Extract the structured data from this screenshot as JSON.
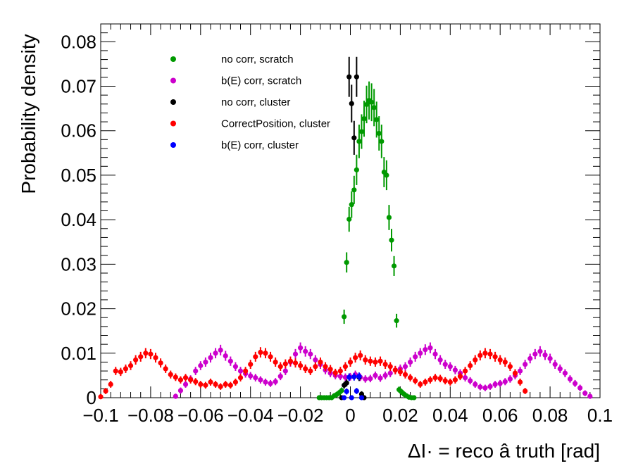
{
  "chart_data": {
    "type": "scatter",
    "xlabel": "ΔΙ· = reco â truth  [rad]",
    "ylabel": "Probability density",
    "xlim": [
      -0.1,
      0.1
    ],
    "ylim": [
      0,
      0.084
    ],
    "xticks": [
      "−0.1",
      "−0.08",
      "−0.06",
      "−0.04",
      "−0.02",
      "0",
      "0.02",
      "0.04",
      "0.06",
      "0.08",
      "0.1"
    ],
    "yticks": [
      "0",
      "0.01",
      "0.02",
      "0.03",
      "0.04",
      "0.05",
      "0.06",
      "0.07",
      "0.08"
    ],
    "legend_position": "top-left",
    "series": [
      {
        "name": "no corr, scratch",
        "color": "#009900",
        "points": [
          [
            -0.0125,
            0.0
          ],
          [
            -0.0115,
            0.0
          ],
          [
            -0.0105,
            0.0
          ],
          [
            -0.0095,
            0.0
          ],
          [
            -0.0085,
            0.0
          ],
          [
            -0.0075,
            0.0
          ],
          [
            -0.0065,
            0.0004
          ],
          [
            -0.0055,
            0.0007
          ],
          [
            -0.0045,
            0.0011
          ],
          [
            -0.0035,
            0.0016
          ],
          [
            -0.0025,
            0.0182
          ],
          [
            -0.0015,
            0.0304
          ],
          [
            -0.0005,
            0.0401
          ],
          [
            0.0005,
            0.0434
          ],
          [
            0.0015,
            0.0467
          ],
          [
            0.0025,
            0.0512
          ],
          [
            0.0035,
            0.0576
          ],
          [
            0.0045,
            0.0598
          ],
          [
            0.0055,
            0.0627
          ],
          [
            0.0065,
            0.0659
          ],
          [
            0.0075,
            0.0668
          ],
          [
            0.0085,
            0.0664
          ],
          [
            0.0095,
            0.0652
          ],
          [
            0.0105,
            0.0625
          ],
          [
            0.0115,
            0.0594
          ],
          [
            0.0125,
            0.0576
          ],
          [
            0.0135,
            0.0507
          ],
          [
            0.0145,
            0.05
          ],
          [
            0.0155,
            0.0405
          ],
          [
            0.0165,
            0.0354
          ],
          [
            0.0175,
            0.0296
          ],
          [
            0.0185,
            0.0173
          ],
          [
            0.0195,
            0.0018
          ],
          [
            0.0205,
            0.0013
          ],
          [
            0.0215,
            0.0008
          ],
          [
            0.0225,
            0.0004
          ],
          [
            0.0235,
            0.0001
          ],
          [
            0.0245,
            0.0
          ],
          [
            0.0255,
            0.0
          ]
        ]
      },
      {
        "name": "b(E) corr, scratch",
        "color": "#cc00cc",
        "points": [
          [
            -0.07,
            0.0003
          ],
          [
            -0.068,
            0.0016
          ],
          [
            -0.066,
            0.003
          ],
          [
            -0.064,
            0.0042
          ],
          [
            -0.062,
            0.006
          ],
          [
            -0.06,
            0.0072
          ],
          [
            -0.058,
            0.008
          ],
          [
            -0.056,
            0.009
          ],
          [
            -0.054,
            0.01
          ],
          [
            -0.052,
            0.0107
          ],
          [
            -0.05,
            0.0094
          ],
          [
            -0.048,
            0.0082
          ],
          [
            -0.046,
            0.007
          ],
          [
            -0.044,
            0.006
          ],
          [
            -0.042,
            0.0054
          ],
          [
            -0.04,
            0.0049
          ],
          [
            -0.038,
            0.0045
          ],
          [
            -0.036,
            0.004
          ],
          [
            -0.034,
            0.0035
          ],
          [
            -0.032,
            0.0032
          ],
          [
            -0.03,
            0.0036
          ],
          [
            -0.028,
            0.0048
          ],
          [
            -0.026,
            0.006
          ],
          [
            -0.024,
            0.008
          ],
          [
            -0.022,
            0.0098
          ],
          [
            -0.02,
            0.0112
          ],
          [
            -0.018,
            0.0104
          ],
          [
            -0.016,
            0.0098
          ],
          [
            -0.014,
            0.0085
          ],
          [
            -0.012,
            0.0075
          ],
          [
            -0.01,
            0.0062
          ],
          [
            -0.008,
            0.0055
          ],
          [
            -0.006,
            0.005
          ],
          [
            -0.004,
            0.0048
          ],
          [
            -0.002,
            0.0046
          ],
          [
            0.0,
            0.0047
          ],
          [
            0.002,
            0.0052
          ],
          [
            0.004,
            0.0046
          ],
          [
            0.006,
            0.0042
          ],
          [
            0.008,
            0.0043
          ],
          [
            0.01,
            0.005
          ],
          [
            0.012,
            0.0044
          ],
          [
            0.014,
            0.005
          ],
          [
            0.016,
            0.0055
          ],
          [
            0.018,
            0.0062
          ],
          [
            0.02,
            0.0065
          ],
          [
            0.022,
            0.007
          ],
          [
            0.024,
            0.008
          ],
          [
            0.026,
            0.0092
          ],
          [
            0.028,
            0.01
          ],
          [
            0.03,
            0.0108
          ],
          [
            0.032,
            0.0112
          ],
          [
            0.034,
            0.0098
          ],
          [
            0.036,
            0.0085
          ],
          [
            0.038,
            0.0075
          ],
          [
            0.04,
            0.007
          ],
          [
            0.042,
            0.0062
          ],
          [
            0.044,
            0.0055
          ],
          [
            0.046,
            0.0045
          ],
          [
            0.048,
            0.0038
          ],
          [
            0.05,
            0.003
          ],
          [
            0.052,
            0.0024
          ],
          [
            0.054,
            0.0022
          ],
          [
            0.056,
            0.0025
          ],
          [
            0.058,
            0.003
          ],
          [
            0.06,
            0.0032
          ],
          [
            0.062,
            0.0036
          ],
          [
            0.064,
            0.0042
          ],
          [
            0.066,
            0.005
          ],
          [
            0.068,
            0.006
          ],
          [
            0.07,
            0.0075
          ],
          [
            0.072,
            0.0088
          ],
          [
            0.074,
            0.0098
          ],
          [
            0.076,
            0.0104
          ],
          [
            0.078,
            0.0096
          ],
          [
            0.08,
            0.0088
          ],
          [
            0.082,
            0.0075
          ],
          [
            0.084,
            0.0065
          ],
          [
            0.086,
            0.0055
          ],
          [
            0.088,
            0.0042
          ],
          [
            0.09,
            0.0032
          ],
          [
            0.092,
            0.0022
          ],
          [
            0.094,
            0.001
          ],
          [
            0.096,
            0.0003
          ]
        ]
      },
      {
        "name": "no corr, cluster",
        "color": "#000000",
        "points": [
          [
            -0.0035,
            0.0
          ],
          [
            -0.0025,
            0.0028
          ],
          [
            -0.0015,
            0.0033
          ],
          [
            -0.0005,
            0.0721
          ],
          [
            0.0005,
            0.0661
          ],
          [
            0.0015,
            0.0584
          ],
          [
            0.0025,
            0.0721
          ],
          [
            0.0035,
            0.0046
          ],
          [
            0.0045,
            0.0008
          ],
          [
            0.0055,
            0.0
          ]
        ]
      },
      {
        "name": "CorrectPosition, cluster",
        "color": "#ff0000",
        "points": [
          [
            -0.1,
            0.0002
          ],
          [
            -0.098,
            0.0015
          ],
          [
            -0.096,
            0.003
          ],
          [
            -0.094,
            0.006
          ],
          [
            -0.092,
            0.0058
          ],
          [
            -0.09,
            0.0065
          ],
          [
            -0.088,
            0.0072
          ],
          [
            -0.086,
            0.0085
          ],
          [
            -0.084,
            0.0092
          ],
          [
            -0.082,
            0.01
          ],
          [
            -0.08,
            0.0098
          ],
          [
            -0.078,
            0.009
          ],
          [
            -0.076,
            0.0078
          ],
          [
            -0.074,
            0.0065
          ],
          [
            -0.072,
            0.0052
          ],
          [
            -0.07,
            0.0046
          ],
          [
            -0.068,
            0.004
          ],
          [
            -0.066,
            0.0045
          ],
          [
            -0.064,
            0.004
          ],
          [
            -0.062,
            0.0036
          ],
          [
            -0.06,
            0.003
          ],
          [
            -0.058,
            0.0028
          ],
          [
            -0.056,
            0.0035
          ],
          [
            -0.054,
            0.003
          ],
          [
            -0.052,
            0.0025
          ],
          [
            -0.05,
            0.003
          ],
          [
            -0.048,
            0.0028
          ],
          [
            -0.046,
            0.0035
          ],
          [
            -0.044,
            0.0045
          ],
          [
            -0.042,
            0.006
          ],
          [
            -0.04,
            0.0075
          ],
          [
            -0.038,
            0.0092
          ],
          [
            -0.036,
            0.0102
          ],
          [
            -0.034,
            0.01
          ],
          [
            -0.032,
            0.0092
          ],
          [
            -0.03,
            0.008
          ],
          [
            -0.028,
            0.007
          ],
          [
            -0.026,
            0.0076
          ],
          [
            -0.024,
            0.0082
          ],
          [
            -0.022,
            0.0078
          ],
          [
            -0.02,
            0.0072
          ],
          [
            -0.018,
            0.0065
          ],
          [
            -0.016,
            0.006
          ],
          [
            -0.014,
            0.007
          ],
          [
            -0.012,
            0.008
          ],
          [
            -0.01,
            0.007
          ],
          [
            -0.008,
            0.0064
          ],
          [
            -0.006,
            0.0056
          ],
          [
            -0.004,
            0.006
          ],
          [
            -0.002,
            0.007
          ],
          [
            0.0,
            0.008
          ],
          [
            0.002,
            0.009
          ],
          [
            0.004,
            0.0095
          ],
          [
            0.006,
            0.0085
          ],
          [
            0.008,
            0.0082
          ],
          [
            0.01,
            0.008
          ],
          [
            0.012,
            0.0082
          ],
          [
            0.014,
            0.0075
          ],
          [
            0.016,
            0.007
          ],
          [
            0.018,
            0.0062
          ],
          [
            0.02,
            0.0058
          ],
          [
            0.022,
            0.0052
          ],
          [
            0.024,
            0.0045
          ],
          [
            0.026,
            0.0038
          ],
          [
            0.028,
            0.003
          ],
          [
            0.03,
            0.0035
          ],
          [
            0.032,
            0.004
          ],
          [
            0.034,
            0.0045
          ],
          [
            0.036,
            0.0043
          ],
          [
            0.038,
            0.0038
          ],
          [
            0.04,
            0.0035
          ],
          [
            0.042,
            0.004
          ],
          [
            0.044,
            0.0048
          ],
          [
            0.046,
            0.006
          ],
          [
            0.048,
            0.0072
          ],
          [
            0.05,
            0.0085
          ],
          [
            0.052,
            0.0095
          ],
          [
            0.054,
            0.01
          ],
          [
            0.056,
            0.0098
          ],
          [
            0.058,
            0.0092
          ],
          [
            0.06,
            0.0085
          ],
          [
            0.062,
            0.008
          ],
          [
            0.064,
            0.007
          ],
          [
            0.066,
            0.0055
          ],
          [
            0.068,
            0.0035
          ],
          [
            0.07,
            0.0015
          ]
        ]
      },
      {
        "name": "b(E) corr, cluster",
        "color": "#0000ff",
        "points": [
          [
            -0.0025,
            0.0
          ],
          [
            -0.0015,
            0.0014
          ],
          [
            -0.0005,
            0.0046
          ],
          [
            0.0005,
            0.0
          ],
          [
            0.0015,
            0.0047
          ],
          [
            0.0025,
            0.0015
          ],
          [
            0.0035,
            0.0048
          ],
          [
            0.0045,
            0.0
          ]
        ]
      }
    ]
  }
}
